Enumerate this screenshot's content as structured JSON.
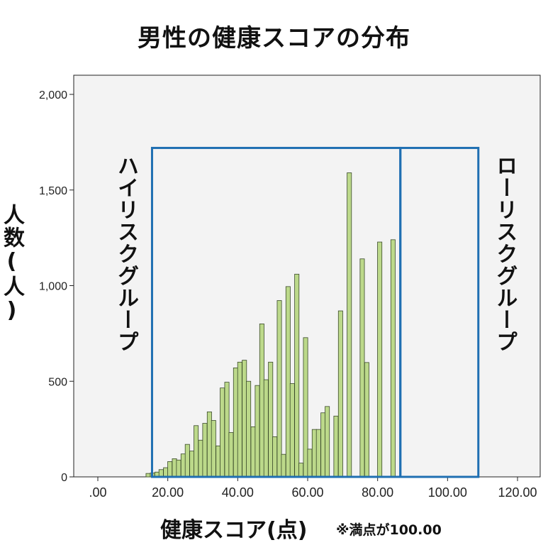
{
  "chart_data": {
    "type": "bar",
    "title": "男性の健康スコアの分布",
    "xlabel": "健康スコア(点)",
    "ylabel": "人数(人)",
    "note": "※満点が100.00",
    "xlim": [
      0,
      120
    ],
    "ylim": [
      0,
      2000
    ],
    "x_ticks": [
      ".00",
      "20.00",
      "40.00",
      "60.00",
      "80.00",
      "100.00",
      "120.00"
    ],
    "y_ticks": [
      "0",
      "500",
      "1,000",
      "1,500",
      "2,000"
    ],
    "bin_width": 1.25,
    "bins": [
      {
        "x": 14.4,
        "y": 18
      },
      {
        "x": 15.6,
        "y": 20
      },
      {
        "x": 16.9,
        "y": 25
      },
      {
        "x": 18.1,
        "y": 38
      },
      {
        "x": 19.4,
        "y": 48
      },
      {
        "x": 20.6,
        "y": 80
      },
      {
        "x": 21.9,
        "y": 95
      },
      {
        "x": 23.1,
        "y": 88
      },
      {
        "x": 24.4,
        "y": 120
      },
      {
        "x": 25.6,
        "y": 170
      },
      {
        "x": 26.9,
        "y": 135
      },
      {
        "x": 28.1,
        "y": 268
      },
      {
        "x": 29.4,
        "y": 192
      },
      {
        "x": 30.6,
        "y": 280
      },
      {
        "x": 31.9,
        "y": 340
      },
      {
        "x": 33.1,
        "y": 295
      },
      {
        "x": 34.4,
        "y": 162
      },
      {
        "x": 35.6,
        "y": 465
      },
      {
        "x": 36.9,
        "y": 495
      },
      {
        "x": 38.1,
        "y": 232
      },
      {
        "x": 39.4,
        "y": 570
      },
      {
        "x": 40.6,
        "y": 600
      },
      {
        "x": 41.9,
        "y": 610
      },
      {
        "x": 43.1,
        "y": 500
      },
      {
        "x": 44.4,
        "y": 262
      },
      {
        "x": 45.6,
        "y": 478
      },
      {
        "x": 46.9,
        "y": 800
      },
      {
        "x": 48.1,
        "y": 508
      },
      {
        "x": 49.4,
        "y": 600
      },
      {
        "x": 50.6,
        "y": 210
      },
      {
        "x": 51.9,
        "y": 922
      },
      {
        "x": 53.1,
        "y": 118
      },
      {
        "x": 54.4,
        "y": 995
      },
      {
        "x": 55.6,
        "y": 488
      },
      {
        "x": 56.9,
        "y": 1060
      },
      {
        "x": 58.1,
        "y": 72
      },
      {
        "x": 59.4,
        "y": 728
      },
      {
        "x": 60.6,
        "y": 145
      },
      {
        "x": 61.9,
        "y": 248
      },
      {
        "x": 63.1,
        "y": 248
      },
      {
        "x": 64.4,
        "y": 335
      },
      {
        "x": 65.6,
        "y": 368
      },
      {
        "x": 68.1,
        "y": 318
      },
      {
        "x": 69.4,
        "y": 868
      },
      {
        "x": 71.9,
        "y": 1590
      },
      {
        "x": 75.6,
        "y": 1140
      },
      {
        "x": 76.9,
        "y": 598
      },
      {
        "x": 80.6,
        "y": 1228
      },
      {
        "x": 84.4,
        "y": 1240
      }
    ],
    "annotations": [
      {
        "label": "ハイリスクグループ",
        "box_x": [
          15.5,
          86.5
        ],
        "box_y": [
          0,
          1720
        ]
      },
      {
        "label": "ローリスクグループ",
        "box_x": [
          86.5,
          108.8
        ],
        "box_y": [
          0,
          1720
        ]
      }
    ]
  },
  "colors": {
    "bar_fill": "#bcd98a",
    "bar_stroke": "#3a4a2a",
    "box_stroke": "#1f6fb2",
    "plot_bg": "#f3f3f3"
  }
}
